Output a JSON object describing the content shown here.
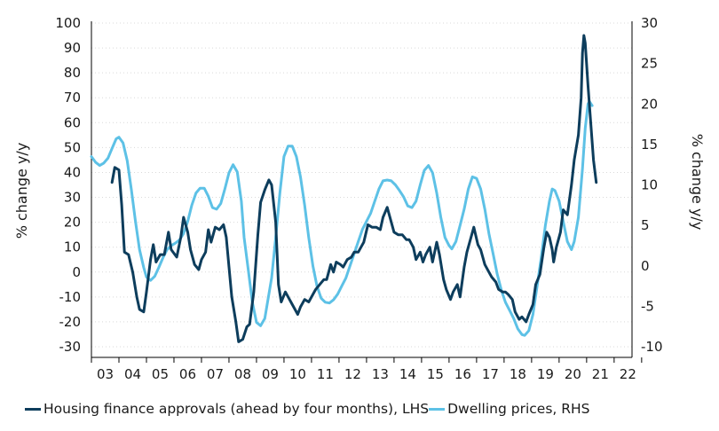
{
  "chart_data": {
    "type": "line",
    "title": "",
    "ylabel": "% change y/y",
    "y2label": "% change y/y",
    "x_tick_labels": [
      "03",
      "04",
      "05",
      "06",
      "07",
      "08",
      "09",
      "10",
      "11",
      "12",
      "13",
      "14",
      "15",
      "16",
      "17",
      "18",
      "19",
      "20",
      "21",
      "22"
    ],
    "ylim": [
      -30,
      100
    ],
    "y2lim": [
      -10,
      30
    ],
    "y_ticks": [
      -30,
      -20,
      -10,
      0,
      10,
      20,
      30,
      40,
      50,
      60,
      70,
      80,
      90,
      100
    ],
    "y2_ticks": [
      -10,
      -5,
      0,
      5,
      10,
      15,
      20,
      25,
      30
    ],
    "grid": "horizontal dotted",
    "legend_position": "bottom",
    "series": [
      {
        "name": "Housing finance approvals (ahead by four months), LHS",
        "axis": "left",
        "color": "#0d3d5c",
        "points": [
          [
            2003.75,
            36
          ],
          [
            2003.85,
            42
          ],
          [
            2004.0,
            41
          ],
          [
            2004.1,
            27
          ],
          [
            2004.2,
            8
          ],
          [
            2004.35,
            7
          ],
          [
            2004.5,
            0
          ],
          [
            2004.65,
            -10
          ],
          [
            2004.75,
            -15
          ],
          [
            2004.9,
            -16
          ],
          [
            2005.0,
            -8
          ],
          [
            2005.15,
            5
          ],
          [
            2005.25,
            11
          ],
          [
            2005.35,
            4
          ],
          [
            2005.5,
            7
          ],
          [
            2005.65,
            7
          ],
          [
            2005.8,
            16
          ],
          [
            2005.9,
            9
          ],
          [
            2006.1,
            6
          ],
          [
            2006.25,
            14
          ],
          [
            2006.35,
            22
          ],
          [
            2006.5,
            16
          ],
          [
            2006.6,
            9
          ],
          [
            2006.75,
            3
          ],
          [
            2006.9,
            1
          ],
          [
            2007.0,
            5
          ],
          [
            2007.15,
            8
          ],
          [
            2007.25,
            17
          ],
          [
            2007.35,
            12
          ],
          [
            2007.5,
            18
          ],
          [
            2007.65,
            17
          ],
          [
            2007.8,
            19
          ],
          [
            2007.9,
            14
          ],
          [
            2008.0,
            2
          ],
          [
            2008.1,
            -10
          ],
          [
            2008.25,
            -20
          ],
          [
            2008.35,
            -28
          ],
          [
            2008.5,
            -27
          ],
          [
            2008.65,
            -22
          ],
          [
            2008.75,
            -21
          ],
          [
            2008.9,
            -8
          ],
          [
            2009.05,
            15
          ],
          [
            2009.15,
            28
          ],
          [
            2009.3,
            33
          ],
          [
            2009.45,
            37
          ],
          [
            2009.55,
            35
          ],
          [
            2009.7,
            20
          ],
          [
            2009.8,
            -5
          ],
          [
            2009.9,
            -12
          ],
          [
            2010.05,
            -8
          ],
          [
            2010.15,
            -10
          ],
          [
            2010.25,
            -12
          ],
          [
            2010.35,
            -14
          ],
          [
            2010.5,
            -17
          ],
          [
            2010.6,
            -14
          ],
          [
            2010.75,
            -11
          ],
          [
            2010.9,
            -12
          ],
          [
            2011.05,
            -9
          ],
          [
            2011.15,
            -7
          ],
          [
            2011.3,
            -5
          ],
          [
            2011.45,
            -3
          ],
          [
            2011.55,
            -3
          ],
          [
            2011.7,
            3
          ],
          [
            2011.8,
            0
          ],
          [
            2011.9,
            4
          ],
          [
            2012.05,
            3
          ],
          [
            2012.15,
            2
          ],
          [
            2012.3,
            5
          ],
          [
            2012.45,
            6
          ],
          [
            2012.55,
            8
          ],
          [
            2012.7,
            8
          ],
          [
            2012.8,
            10
          ],
          [
            2012.9,
            12
          ],
          [
            2013.05,
            19
          ],
          [
            2013.2,
            18
          ],
          [
            2013.35,
            18
          ],
          [
            2013.5,
            17
          ],
          [
            2013.6,
            22
          ],
          [
            2013.75,
            26
          ],
          [
            2013.85,
            22
          ],
          [
            2014.0,
            16
          ],
          [
            2014.15,
            15
          ],
          [
            2014.3,
            15
          ],
          [
            2014.45,
            13
          ],
          [
            2014.55,
            13
          ],
          [
            2014.7,
            10
          ],
          [
            2014.8,
            5
          ],
          [
            2014.95,
            8
          ],
          [
            2015.05,
            4
          ],
          [
            2015.15,
            7
          ],
          [
            2015.3,
            10
          ],
          [
            2015.4,
            4
          ],
          [
            2015.55,
            12
          ],
          [
            2015.65,
            7
          ],
          [
            2015.8,
            -3
          ],
          [
            2015.9,
            -7
          ],
          [
            2016.05,
            -11
          ],
          [
            2016.15,
            -8
          ],
          [
            2016.3,
            -5
          ],
          [
            2016.4,
            -10
          ],
          [
            2016.55,
            2
          ],
          [
            2016.65,
            8
          ],
          [
            2016.75,
            12
          ],
          [
            2016.9,
            18
          ],
          [
            2017.05,
            11
          ],
          [
            2017.15,
            9
          ],
          [
            2017.3,
            3
          ],
          [
            2017.45,
            0
          ],
          [
            2017.55,
            -2
          ],
          [
            2017.7,
            -4
          ],
          [
            2017.8,
            -7
          ],
          [
            2017.95,
            -8
          ],
          [
            2018.05,
            -8
          ],
          [
            2018.15,
            -9
          ],
          [
            2018.3,
            -11
          ],
          [
            2018.4,
            -16
          ],
          [
            2018.55,
            -19
          ],
          [
            2018.65,
            -18
          ],
          [
            2018.8,
            -20
          ],
          [
            2018.9,
            -17
          ],
          [
            2019.05,
            -13
          ],
          [
            2019.15,
            -5
          ],
          [
            2019.3,
            -1
          ],
          [
            2019.45,
            10
          ],
          [
            2019.55,
            16
          ],
          [
            2019.65,
            14
          ],
          [
            2019.75,
            9
          ],
          [
            2019.8,
            4
          ],
          [
            2019.9,
            10
          ],
          [
            2020.05,
            16
          ],
          [
            2020.15,
            25
          ],
          [
            2020.3,
            23
          ],
          [
            2020.45,
            35
          ],
          [
            2020.55,
            45
          ],
          [
            2020.7,
            55
          ],
          [
            2020.8,
            70
          ],
          [
            2020.85,
            88
          ],
          [
            2020.9,
            95
          ],
          [
            2020.95,
            92
          ],
          [
            2021.05,
            75
          ],
          [
            2021.15,
            60
          ],
          [
            2021.25,
            45
          ],
          [
            2021.35,
            36
          ]
        ]
      },
      {
        "name": "Dwelling prices, RHS",
        "axis": "right",
        "color": "#5dc1e6",
        "points": [
          [
            2003.0,
            13.5
          ],
          [
            2003.15,
            12.8
          ],
          [
            2003.3,
            12.4
          ],
          [
            2003.45,
            12.7
          ],
          [
            2003.6,
            13.3
          ],
          [
            2003.75,
            14.5
          ],
          [
            2003.9,
            15.7
          ],
          [
            2004.0,
            15.9
          ],
          [
            2004.15,
            15.2
          ],
          [
            2004.3,
            13.0
          ],
          [
            2004.45,
            9.5
          ],
          [
            2004.6,
            5.5
          ],
          [
            2004.75,
            2.0
          ],
          [
            2004.9,
            -0.2
          ],
          [
            2005.0,
            -1.4
          ],
          [
            2005.15,
            -1.8
          ],
          [
            2005.3,
            -1.3
          ],
          [
            2005.45,
            -0.2
          ],
          [
            2005.6,
            1.0
          ],
          [
            2005.75,
            2.0
          ],
          [
            2005.9,
            2.5
          ],
          [
            2006.05,
            2.8
          ],
          [
            2006.2,
            3.2
          ],
          [
            2006.35,
            4.0
          ],
          [
            2006.5,
            5.5
          ],
          [
            2006.65,
            7.5
          ],
          [
            2006.8,
            9.0
          ],
          [
            2006.95,
            9.6
          ],
          [
            2007.1,
            9.6
          ],
          [
            2007.25,
            8.6
          ],
          [
            2007.4,
            7.2
          ],
          [
            2007.55,
            7.0
          ],
          [
            2007.7,
            7.7
          ],
          [
            2007.85,
            9.5
          ],
          [
            2008.0,
            11.5
          ],
          [
            2008.15,
            12.5
          ],
          [
            2008.3,
            11.6
          ],
          [
            2008.45,
            8.0
          ],
          [
            2008.55,
            3.5
          ],
          [
            2008.7,
            -0.5
          ],
          [
            2008.85,
            -4.5
          ],
          [
            2009.0,
            -7.0
          ],
          [
            2009.15,
            -7.4
          ],
          [
            2009.3,
            -6.5
          ],
          [
            2009.4,
            -4.5
          ],
          [
            2009.55,
            -1.5
          ],
          [
            2009.7,
            3.5
          ],
          [
            2009.85,
            9.0
          ],
          [
            2010.0,
            13.5
          ],
          [
            2010.15,
            14.8
          ],
          [
            2010.3,
            14.8
          ],
          [
            2010.45,
            13.5
          ],
          [
            2010.6,
            11.0
          ],
          [
            2010.75,
            7.5
          ],
          [
            2010.9,
            3.5
          ],
          [
            2011.05,
            0.0
          ],
          [
            2011.2,
            -2.5
          ],
          [
            2011.35,
            -4.0
          ],
          [
            2011.5,
            -4.5
          ],
          [
            2011.65,
            -4.6
          ],
          [
            2011.8,
            -4.2
          ],
          [
            2011.95,
            -3.5
          ],
          [
            2012.1,
            -2.5
          ],
          [
            2012.25,
            -1.5
          ],
          [
            2012.4,
            0.0
          ],
          [
            2012.55,
            1.5
          ],
          [
            2012.7,
            3.0
          ],
          [
            2012.85,
            4.5
          ],
          [
            2013.0,
            5.5
          ],
          [
            2013.15,
            6.5
          ],
          [
            2013.3,
            8.0
          ],
          [
            2013.45,
            9.5
          ],
          [
            2013.6,
            10.5
          ],
          [
            2013.75,
            10.6
          ],
          [
            2013.9,
            10.5
          ],
          [
            2014.05,
            10.0
          ],
          [
            2014.2,
            9.3
          ],
          [
            2014.35,
            8.5
          ],
          [
            2014.5,
            7.4
          ],
          [
            2014.65,
            7.2
          ],
          [
            2014.8,
            8.0
          ],
          [
            2014.95,
            10.0
          ],
          [
            2015.1,
            11.8
          ],
          [
            2015.25,
            12.4
          ],
          [
            2015.4,
            11.5
          ],
          [
            2015.55,
            9.0
          ],
          [
            2015.7,
            6.0
          ],
          [
            2015.85,
            3.5
          ],
          [
            2016.0,
            2.5
          ],
          [
            2016.1,
            2.1
          ],
          [
            2016.25,
            3.0
          ],
          [
            2016.4,
            5.0
          ],
          [
            2016.55,
            7.0
          ],
          [
            2016.7,
            9.5
          ],
          [
            2016.85,
            11.0
          ],
          [
            2017.0,
            10.8
          ],
          [
            2017.15,
            9.5
          ],
          [
            2017.3,
            7.0
          ],
          [
            2017.45,
            4.0
          ],
          [
            2017.6,
            1.5
          ],
          [
            2017.75,
            -1.0
          ],
          [
            2017.9,
            -3.0
          ],
          [
            2018.05,
            -4.5
          ],
          [
            2018.2,
            -5.5
          ],
          [
            2018.35,
            -6.5
          ],
          [
            2018.5,
            -7.8
          ],
          [
            2018.65,
            -8.5
          ],
          [
            2018.75,
            -8.6
          ],
          [
            2018.9,
            -8.0
          ],
          [
            2019.05,
            -6.0
          ],
          [
            2019.2,
            -2.5
          ],
          [
            2019.35,
            1.0
          ],
          [
            2019.5,
            5.0
          ],
          [
            2019.65,
            8.0
          ],
          [
            2019.75,
            9.5
          ],
          [
            2019.85,
            9.3
          ],
          [
            2020.0,
            8.0
          ],
          [
            2020.15,
            5.5
          ],
          [
            2020.3,
            3.0
          ],
          [
            2020.45,
            2.0
          ],
          [
            2020.55,
            3.0
          ],
          [
            2020.7,
            6.0
          ],
          [
            2020.85,
            12.0
          ],
          [
            2020.95,
            17.0
          ],
          [
            2021.05,
            20.0
          ],
          [
            2021.1,
            20.3
          ],
          [
            2021.2,
            19.8
          ]
        ]
      }
    ]
  }
}
